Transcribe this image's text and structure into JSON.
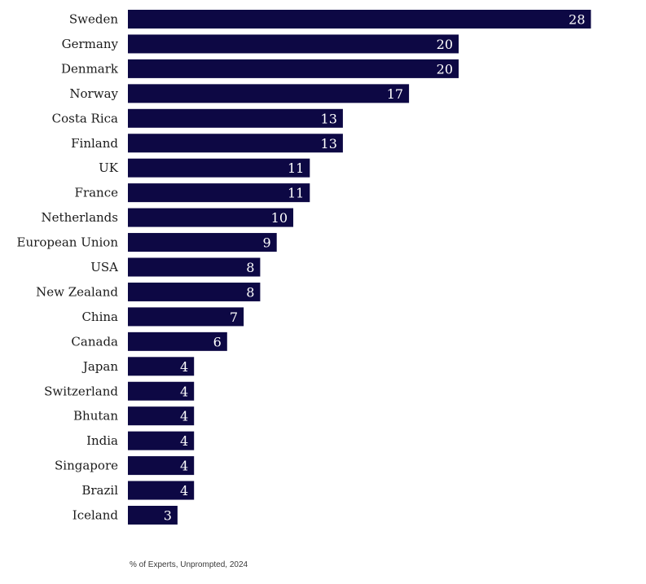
{
  "chart_data": {
    "type": "bar",
    "orientation": "horizontal",
    "categories": [
      "Sweden",
      "Germany",
      "Denmark",
      "Norway",
      "Costa Rica",
      "Finland",
      "UK",
      "France",
      "Netherlands",
      "European Union",
      "USA",
      "New Zealand",
      "China",
      "Canada",
      "Japan",
      "Switzerland",
      "Bhutan",
      "India",
      "Singapore",
      "Brazil",
      "Iceland"
    ],
    "values": [
      28,
      20,
      20,
      17,
      13,
      13,
      11,
      11,
      10,
      9,
      8,
      8,
      7,
      6,
      4,
      4,
      4,
      4,
      4,
      4,
      3
    ],
    "caption": "% of Experts, Unprompted, 2024",
    "bar_color": "#0d0844",
    "label_color": "#ffffff",
    "xlim": [
      0,
      28
    ]
  }
}
